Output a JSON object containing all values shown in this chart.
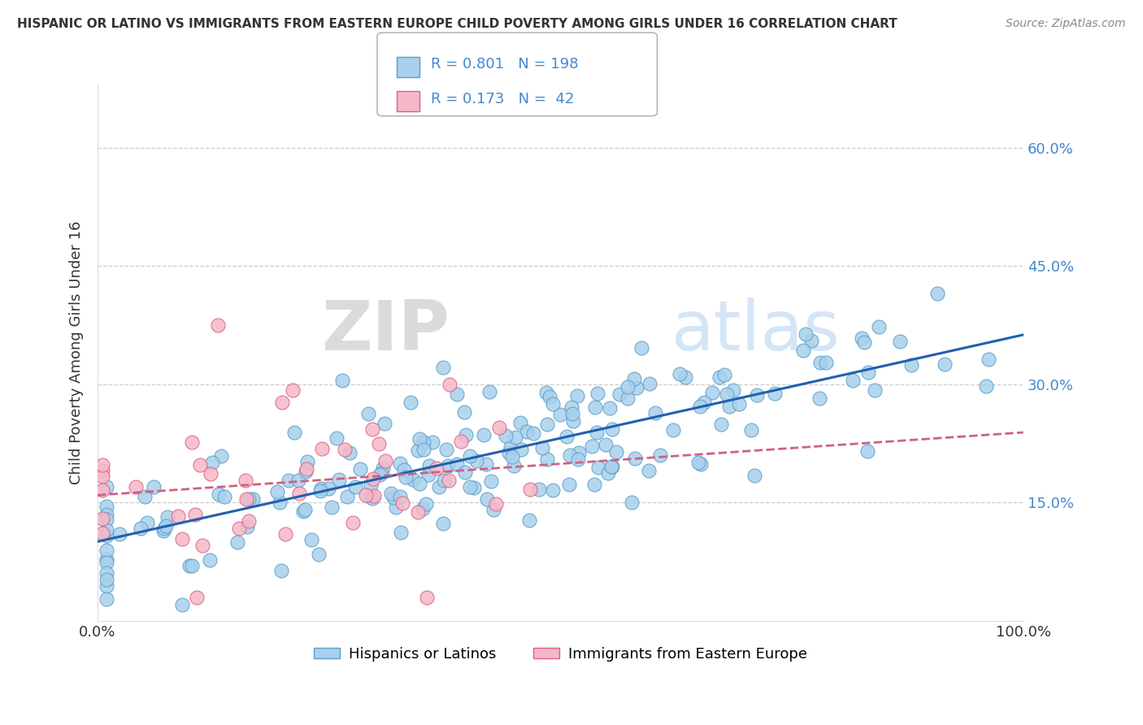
{
  "title": "HISPANIC OR LATINO VS IMMIGRANTS FROM EASTERN EUROPE CHILD POVERTY AMONG GIRLS UNDER 16 CORRELATION CHART",
  "source": "Source: ZipAtlas.com",
  "ylabel": "Child Poverty Among Girls Under 16",
  "xlim": [
    0.0,
    1.0
  ],
  "ylim": [
    0.0,
    0.68
  ],
  "ytick_vals": [
    0.15,
    0.3,
    0.45,
    0.6
  ],
  "ytick_labels": [
    "15.0%",
    "30.0%",
    "45.0%",
    "60.0%"
  ],
  "xticks": [
    0.0,
    1.0
  ],
  "xtick_labels": [
    "0.0%",
    "100.0%"
  ],
  "grid_color": "#cccccc",
  "background_color": "#ffffff",
  "blue_color": "#a8d0ec",
  "pink_color": "#f5b8c8",
  "blue_edge_color": "#5b9ec9",
  "pink_edge_color": "#e06080",
  "blue_line_color": "#2060b0",
  "pink_line_color": "#d06080",
  "tick_label_color": "#4488cc",
  "legend_label1": "Hispanics or Latinos",
  "legend_label2": "Immigrants from Eastern Europe",
  "r_blue": 0.801,
  "n_blue": 198,
  "r_pink": 0.173,
  "n_pink": 42,
  "seed": 7
}
